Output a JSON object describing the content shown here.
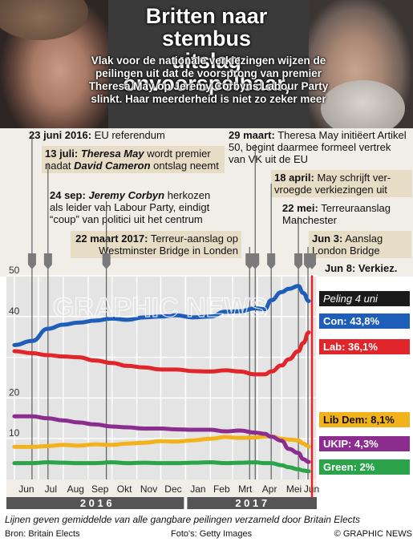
{
  "header": {
    "title_line1": "Britten naar stembus",
    "title_line2": "uitslag onvoorspelbaar,",
    "intro": "Vlak voor de nationale verkiezingen wijzen de peilingen uit dat de voorsprong van premier Theresa May op Jeremy Corbyns Labour Party slinkt. Haar meerderheid is niet zo zeker meer"
  },
  "events": [
    {
      "date": "23 juni 2016:",
      "text": "EU referendum"
    },
    {
      "date": "13 juli:",
      "text_a": "Theresa May",
      "text_b": "wordt premier nadat",
      "text_c": "David Cameron",
      "text_d": "ontslag neemt"
    },
    {
      "date": "24 sep:",
      "text_a": "Jeremy Corbyn",
      "text_b": "herkozen als leider van Labour Party, eindigt “coup” van politici uit het centrum"
    },
    {
      "date": "22 maart 2017:",
      "text": "Terreur-aanslag op Westminster Bridge in Londen"
    },
    {
      "date": "29 maart:",
      "text": "Theresa May initiëert Artikel 50, begint daarmee formeel vertrek van VK uit de EU"
    },
    {
      "date": "18 april:",
      "text": "May schrijft ver-vroegde verkiezingen uit"
    },
    {
      "date": "22 mei:",
      "text": "Terreuraanslag Manchester"
    },
    {
      "date": "Jun 3:",
      "text": "Aanslag London Bridge"
    },
    {
      "date": "Jun 8:",
      "text": "Verkiez."
    }
  ],
  "chart_data": {
    "type": "line",
    "ylim": [
      0,
      50
    ],
    "yticks": [
      10,
      20,
      40,
      50
    ],
    "x": [
      "2016-06-01",
      "2016-06-23",
      "2016-07-13",
      "2016-08-01",
      "2016-08-20",
      "2016-09-10",
      "2016-10-01",
      "2016-10-20",
      "2016-11-10",
      "2016-12-01",
      "2016-12-20",
      "2017-01-10",
      "2017-02-01",
      "2017-02-20",
      "2017-03-10",
      "2017-03-29",
      "2017-04-10",
      "2017-04-18",
      "2017-05-01",
      "2017-05-10",
      "2017-05-22",
      "2017-05-28",
      "2017-06-04"
    ],
    "series": [
      {
        "name": "Con",
        "color": "#1f5eb8",
        "values": [
          33,
          34,
          37,
          38,
          38.5,
          39,
          39.5,
          39.2,
          39.8,
          40,
          40.3,
          39.8,
          40,
          41.2,
          41.3,
          42,
          41.8,
          44,
          46,
          46.8,
          47.5,
          45.8,
          43.8
        ]
      },
      {
        "name": "Lab",
        "color": "#e0252b",
        "values": [
          31.5,
          31,
          30.5,
          30.2,
          30,
          29.2,
          28.6,
          27.9,
          27.5,
          27,
          27,
          26.6,
          26.5,
          26.8,
          26.5,
          25.8,
          25.8,
          26.5,
          28,
          29.5,
          31.5,
          33.5,
          36.1
        ]
      },
      {
        "name": "Lib Dem",
        "color": "#f2b21c",
        "values": [
          8,
          8,
          8.2,
          8.5,
          8.3,
          8.6,
          8.5,
          8.8,
          9,
          9.4,
          9.3,
          9.6,
          10,
          10.4,
          10.2,
          10.3,
          10.5,
          10.6,
          10,
          9.8,
          9.6,
          8.8,
          8.1
        ]
      },
      {
        "name": "UKIP",
        "color": "#8b2d8e",
        "values": [
          15.5,
          15.5,
          15,
          14.5,
          14,
          13.5,
          13,
          12.8,
          12.5,
          12.5,
          12.3,
          12.2,
          12.2,
          11.8,
          12,
          11.5,
          11.2,
          10.5,
          9.5,
          7.5,
          6.5,
          5,
          4.3
        ]
      },
      {
        "name": "Green",
        "color": "#2aa34a",
        "values": [
          4,
          4,
          4.2,
          4.1,
          4,
          4,
          4.2,
          4,
          4.1,
          4,
          4,
          4.1,
          4.2,
          4,
          4.1,
          4.2,
          4,
          4,
          3.5,
          3,
          2.5,
          2.2,
          2
        ]
      }
    ],
    "months": [
      "Jun",
      "Jul",
      "Aug",
      "Sep",
      "Okt",
      "Nov",
      "Dec",
      "Jan",
      "Feb",
      "Mrt",
      "Apr",
      "Mei",
      "Jun"
    ],
    "years": [
      "2 0 1 6",
      "2 0 1 7"
    ],
    "legend": {
      "peiling": "Peling 4 uni",
      "con": "Con: 43,8%",
      "lab": "Lab: 36,1%",
      "libdem": "Lib Dem: 8,1%",
      "ukip": "UKIP: 4,3%",
      "green": "Green: 2%"
    }
  },
  "watermark": "GRAPHIC NEWS",
  "footer": {
    "caption": "Lijnen geven gemiddelde van alle gangbare peilingen verzameld door Britain Elects",
    "source": "Bron: Britain Elects",
    "photos": "Foto's: Getty Images",
    "credit": "© GRAPHIC NEWS"
  }
}
